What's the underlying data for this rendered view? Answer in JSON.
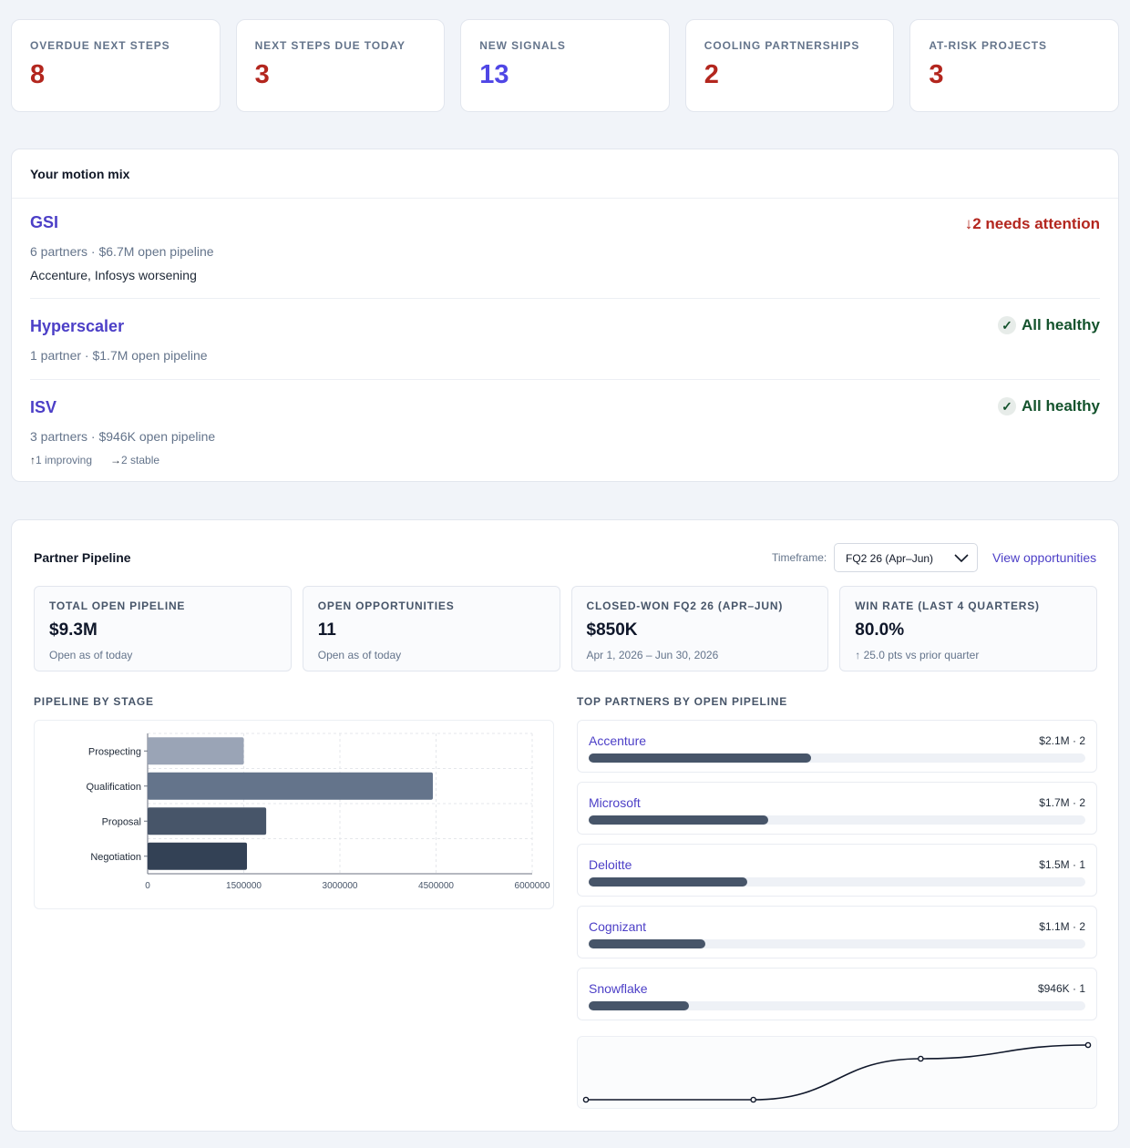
{
  "kpis": [
    {
      "label": "OVERDUE NEXT STEPS",
      "value": "8",
      "tone": "red"
    },
    {
      "label": "NEXT STEPS DUE TODAY",
      "value": "3",
      "tone": "red"
    },
    {
      "label": "NEW SIGNALS",
      "value": "13",
      "tone": "purple"
    },
    {
      "label": "COOLING PARTNERSHIPS",
      "value": "2",
      "tone": "red"
    },
    {
      "label": "AT-RISK PROJECTS",
      "value": "3",
      "tone": "red"
    }
  ],
  "motion_mix": {
    "title": "Your motion mix",
    "rows": [
      {
        "name": "GSI",
        "status": "↓2 needs attention",
        "meta": "6 partners · $6.7M open pipeline",
        "note": "Accenture, Infosys worsening"
      },
      {
        "name": "Hyperscaler",
        "status": "All healthy",
        "meta": "1 partner · $1.7M open pipeline"
      },
      {
        "name": "ISV",
        "status": "All healthy",
        "meta": "3 partners · $946K open pipeline",
        "trend_up_icon": "↑",
        "trend_up": "1 improving",
        "trend_flat_icon": "→",
        "trend_flat": "2 stable"
      }
    ],
    "check_icon": "✓"
  },
  "pipeline": {
    "title": "Partner Pipeline",
    "timeframe_label": "Timeframe:",
    "timeframe_value": "FQ2 26 (Apr–Jun)",
    "view_link": "View opportunities",
    "stats": [
      {
        "label": "TOTAL OPEN PIPELINE",
        "value": "$9.3M",
        "sub": "Open as of today"
      },
      {
        "label": "OPEN OPPORTUNITIES",
        "value": "11",
        "sub": "Open as of today"
      },
      {
        "label": "CLOSED-WON FQ2 26 (APR–JUN)",
        "value": "$850K",
        "sub": "Apr 1, 2026 – Jun 30, 2026"
      },
      {
        "label": "WIN RATE (LAST 4 QUARTERS)",
        "value": "80.0%",
        "sub": "↑ 25.0 pts vs prior quarter"
      }
    ],
    "stage_label": "PIPELINE BY STAGE",
    "partners_label": "TOP PARTNERS BY OPEN PIPELINE",
    "partners": [
      {
        "name": "Accenture",
        "value": "$2.1M · 2",
        "amount": 2100000
      },
      {
        "name": "Microsoft",
        "value": "$1.7M · 2",
        "amount": 1700000
      },
      {
        "name": "Deloitte",
        "value": "$1.5M · 1",
        "amount": 1500000
      },
      {
        "name": "Cognizant",
        "value": "$1.1M · 2",
        "amount": 1100000
      },
      {
        "name": "Snowflake",
        "value": "$946K · 1",
        "amount": 946000
      }
    ]
  },
  "chart_data": [
    {
      "type": "bar",
      "orientation": "horizontal",
      "categories": [
        "Prospecting",
        "Qualification",
        "Proposal",
        "Negotiation"
      ],
      "values": [
        1500000,
        4450000,
        1850000,
        1550000
      ],
      "colors": [
        "#9aa4b6",
        "#64748b",
        "#475569",
        "#334155"
      ],
      "xlim": [
        0,
        6000000
      ],
      "xticks": [
        "0",
        "1500000",
        "3000000",
        "4500000",
        "6000000"
      ],
      "grid": true
    },
    {
      "type": "line",
      "x": [
        0,
        1,
        2,
        3
      ],
      "values": [
        0,
        0,
        0.75,
        1
      ],
      "color": "#0f172a"
    }
  ]
}
